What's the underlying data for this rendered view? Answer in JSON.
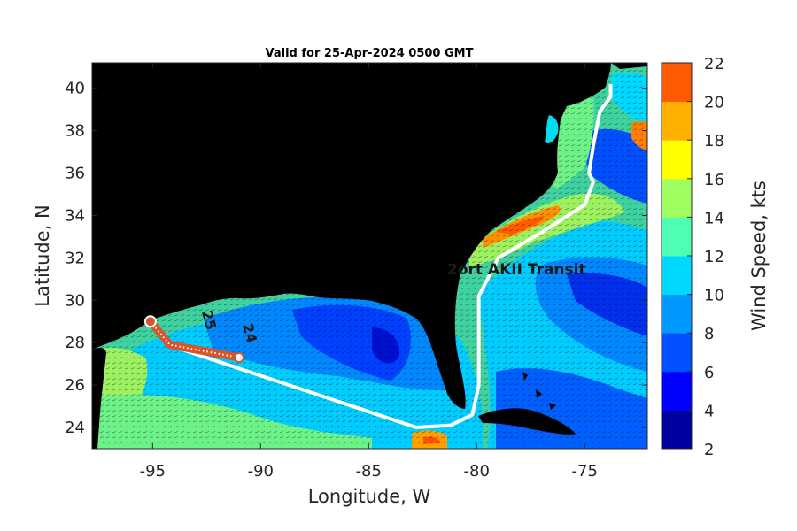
{
  "title": "Valid for 25-Apr-2024 0500 GMT",
  "xlabel": "Longitude, W",
  "ylabel": "Latitude, N",
  "colorbar_label": "Wind Speed, kts",
  "transit_label": "2ort AKII Transit",
  "track_labels": [
    "25",
    "24"
  ],
  "x_range": [
    -97.8,
    -72.1
  ],
  "y_range": [
    23.0,
    41.2
  ],
  "x_ticks": [
    -95,
    -90,
    -85,
    -80,
    -75
  ],
  "y_ticks": [
    24,
    26,
    28,
    30,
    32,
    34,
    36,
    38,
    40
  ],
  "colorbar_ticks": [
    2,
    4,
    6,
    8,
    10,
    12,
    14,
    16,
    18,
    20,
    22
  ],
  "colorbar_colors": [
    "#00009f",
    "#0000ff",
    "#0050ff",
    "#0099ff",
    "#00d8ff",
    "#4dffb2",
    "#a0ff60",
    "#ffff00",
    "#ffb000",
    "#ff5a00"
  ],
  "land_color": "#000000",
  "route_color": "#ffffff",
  "forecast_track_color": "#d9542a",
  "route": [
    [
      -73.8,
      40.2
    ],
    [
      -73.8,
      39.6
    ],
    [
      -74.3,
      38.9
    ],
    [
      -74.6,
      37.3
    ],
    [
      -74.8,
      36.0
    ],
    [
      -74.6,
      35.6
    ],
    [
      -75.0,
      34.5
    ],
    [
      -77.0,
      33.2
    ],
    [
      -79.0,
      32.0
    ],
    [
      -79.9,
      30.2
    ],
    [
      -79.9,
      26.0
    ],
    [
      -80.2,
      24.6
    ],
    [
      -81.2,
      24.1
    ],
    [
      -82.8,
      24.0
    ],
    [
      -94.0,
      27.8
    ],
    [
      -95.0,
      28.7
    ]
  ],
  "forecast_track": [
    [
      -95.1,
      29.0
    ],
    [
      -94.2,
      27.9
    ],
    [
      -91.0,
      27.3
    ]
  ]
}
